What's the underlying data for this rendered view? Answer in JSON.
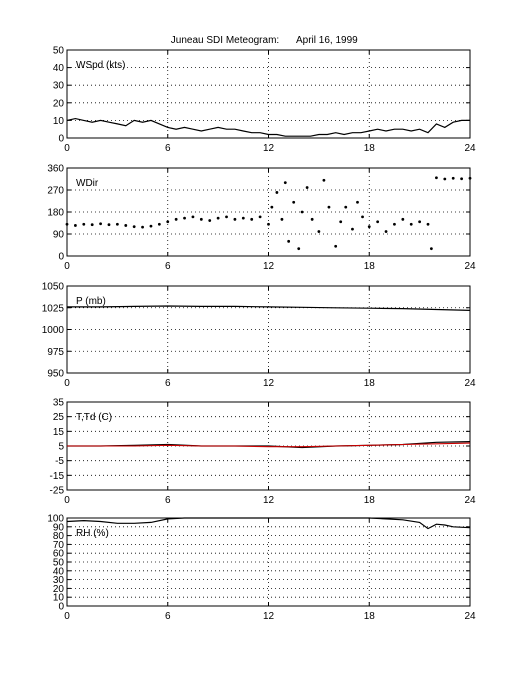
{
  "figure": {
    "title": "Juneau SDI Meteogram:",
    "date": "April 16, 1999"
  },
  "colors": {
    "axes": "#000000",
    "series_primary": "#000000",
    "series_secondary": "#cc0000",
    "grid": "#000000"
  },
  "chart_data": [
    {
      "type": "line",
      "panel_label": "WSpd (kts)",
      "xlim": [
        0,
        24
      ],
      "ylim": [
        0,
        50
      ],
      "xticks": [
        0,
        6,
        12,
        18,
        24
      ],
      "yticks": [
        0,
        10,
        20,
        30,
        40,
        50
      ],
      "grid": true,
      "series": [
        {
          "x": [
            0,
            0.5,
            1,
            1.5,
            2,
            2.5,
            3,
            3.5,
            4,
            4.5,
            5,
            5.5,
            6,
            6.5,
            7,
            7.5,
            8,
            8.5,
            9,
            9.5,
            10,
            10.5,
            11,
            11.5,
            12,
            12.5,
            13,
            13.5,
            14,
            14.5,
            15,
            15.5,
            16,
            16.5,
            17,
            17.5,
            18,
            18.5,
            19,
            19.5,
            20,
            20.5,
            21,
            21.5,
            22,
            22.5,
            23,
            23.5,
            24
          ],
          "values": [
            10,
            11,
            10,
            9,
            10,
            9,
            8,
            7,
            10,
            9,
            10,
            8,
            6,
            5,
            6,
            5,
            4,
            5,
            6,
            5,
            5,
            4,
            3,
            3,
            2,
            2,
            1,
            1,
            1,
            1,
            2,
            2,
            3,
            2,
            3,
            3,
            4,
            5,
            4,
            5,
            5,
            4,
            5,
            3,
            8,
            6,
            9,
            10,
            10
          ]
        }
      ]
    },
    {
      "type": "scatter",
      "panel_label": "WDir",
      "xlim": [
        0,
        24
      ],
      "ylim": [
        0,
        360
      ],
      "xticks": [
        0,
        6,
        12,
        18,
        24
      ],
      "yticks": [
        0,
        90,
        180,
        270,
        360
      ],
      "grid": true,
      "series": [
        {
          "x": [
            0,
            0.5,
            1,
            1.5,
            2,
            2.5,
            3,
            3.5,
            4,
            4.5,
            5,
            5.5,
            6,
            6.5,
            7,
            7.5,
            8,
            8.5,
            9,
            9.5,
            10,
            10.5,
            11,
            11.5,
            12,
            12.2,
            12.5,
            12.8,
            13,
            13.2,
            13.5,
            13.8,
            14,
            14.3,
            14.6,
            15,
            15.3,
            15.6,
            16,
            16.3,
            16.6,
            17,
            17.3,
            17.6,
            18,
            18.5,
            19,
            19.5,
            20,
            20.5,
            21,
            21.5,
            21.7,
            22,
            22.5,
            23,
            23.5,
            24
          ],
          "values": [
            130,
            125,
            130,
            128,
            132,
            128,
            130,
            125,
            120,
            118,
            122,
            130,
            140,
            150,
            155,
            160,
            150,
            145,
            155,
            160,
            150,
            155,
            150,
            160,
            130,
            200,
            260,
            150,
            300,
            60,
            220,
            30,
            180,
            280,
            150,
            100,
            310,
            200,
            40,
            140,
            200,
            110,
            220,
            160,
            120,
            140,
            100,
            130,
            150,
            130,
            140,
            130,
            30,
            320,
            315,
            318,
            316,
            318
          ]
        }
      ]
    },
    {
      "type": "line",
      "panel_label": "P (mb)",
      "xlim": [
        0,
        24
      ],
      "ylim": [
        950,
        1050
      ],
      "xticks": [
        0,
        6,
        12,
        18,
        24
      ],
      "yticks": [
        950,
        975,
        1000,
        1025,
        1050
      ],
      "grid": true,
      "series": [
        {
          "x": [
            0,
            2,
            4,
            6,
            8,
            10,
            12,
            14,
            16,
            18,
            20,
            22,
            24
          ],
          "values": [
            1026,
            1026,
            1026.5,
            1027,
            1026.5,
            1026.5,
            1026,
            1025.5,
            1025,
            1024.5,
            1024,
            1023,
            1022
          ]
        }
      ]
    },
    {
      "type": "line",
      "panel_label": "T,Td (C)",
      "xlim": [
        0,
        24
      ],
      "ylim": [
        -25,
        35
      ],
      "xticks": [
        0,
        6,
        12,
        18,
        24
      ],
      "yticks": [
        -25,
        -15,
        -5,
        5,
        15,
        25,
        35
      ],
      "grid": true,
      "series": [
        {
          "x": [
            0,
            2,
            4,
            6,
            8,
            10,
            12,
            14,
            16,
            18,
            20,
            22,
            24
          ],
          "values": [
            5,
            5,
            5.5,
            6,
            5,
            5,
            5,
            4,
            5,
            5.5,
            6,
            7.5,
            8
          ]
        },
        {
          "x": [
            0,
            2,
            4,
            6,
            8,
            10,
            12,
            14,
            16,
            18,
            20,
            22,
            24
          ],
          "values": [
            5,
            5,
            5,
            5.5,
            5,
            5,
            4.5,
            4.5,
            5,
            5.5,
            6,
            6.5,
            7
          ]
        }
      ]
    },
    {
      "type": "line",
      "panel_label": "RH (%)",
      "xlim": [
        0,
        24
      ],
      "ylim": [
        0,
        100
      ],
      "xticks": [
        0,
        6,
        12,
        18,
        24
      ],
      "yticks": [
        0,
        10,
        20,
        30,
        40,
        50,
        60,
        70,
        80,
        90,
        100
      ],
      "grid": true,
      "series": [
        {
          "x": [
            0,
            1,
            2,
            3,
            4,
            5,
            6,
            7,
            8,
            9,
            10,
            11,
            12,
            13,
            14,
            15,
            16,
            17,
            18,
            19,
            20,
            21,
            21.5,
            22,
            22.5,
            23,
            24
          ],
          "values": [
            96,
            97,
            96,
            94,
            94,
            95,
            99,
            100,
            100,
            100,
            100,
            100,
            100,
            100,
            100,
            100,
            100,
            100,
            100,
            99,
            98,
            95,
            88,
            93,
            92,
            90,
            89
          ]
        }
      ]
    }
  ]
}
